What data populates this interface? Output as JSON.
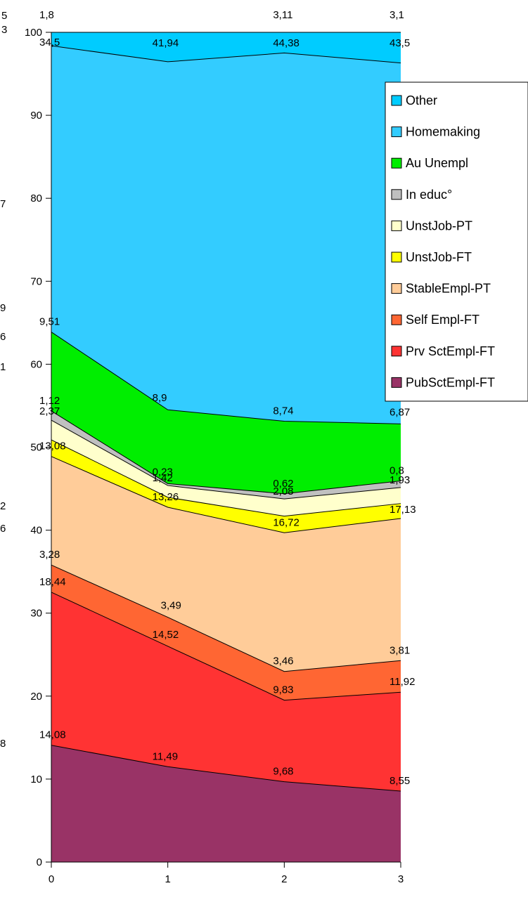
{
  "chart_data": {
    "type": "area",
    "stacked": true,
    "x": [
      0,
      1,
      2,
      3
    ],
    "xlim": [
      0,
      3
    ],
    "ylim": [
      0,
      100
    ],
    "xticks": [
      0,
      1,
      2,
      3
    ],
    "yticks": [
      0,
      10,
      20,
      30,
      40,
      50,
      60,
      70,
      80,
      90,
      100
    ],
    "title": "",
    "xlabel": "",
    "ylabel": "",
    "grid": false,
    "legend_position": "right",
    "series": [
      {
        "name": "PubSctEmpl-FT",
        "color": "#993366",
        "values": [
          14.08,
          11.49,
          9.68,
          8.55
        ],
        "labels": [
          "14,08",
          "11,49",
          "9,68",
          "8,55"
        ]
      },
      {
        "name": "Prv SctEmpl-FT",
        "color": "#ff3333",
        "values": [
          18.44,
          14.52,
          9.83,
          11.92
        ],
        "labels": [
          "18,44",
          "14,52",
          "9,83",
          "11,92"
        ]
      },
      {
        "name": "Self Empl-FT",
        "color": "#ff6633",
        "values": [
          3.28,
          3.49,
          3.46,
          3.81
        ],
        "labels": [
          "3,28",
          "3,49",
          "3,46",
          "3,81"
        ]
      },
      {
        "name": "StableEmpl-PT",
        "color": "#ffcc99",
        "values": [
          13.08,
          13.26,
          16.72,
          17.13
        ],
        "labels": [
          "13,08",
          "13,26",
          "16,72",
          "17,13"
        ]
      },
      {
        "name": "UnstJob-FT",
        "color": "#ffff00",
        "values": [
          2.0,
          1.2,
          2.0,
          1.8
        ],
        "labels": [
          "",
          "",
          "",
          ""
        ]
      },
      {
        "name": "UnstJob-PT",
        "color": "#ffffcc",
        "values": [
          2.37,
          1.42,
          2.08,
          1.93
        ],
        "labels": [
          "2,37",
          "1,42",
          "2,08",
          "1,93"
        ]
      },
      {
        "name": "In educ°",
        "color": "#c0c0c0",
        "values": [
          1.12,
          0.23,
          0.62,
          0.8
        ],
        "labels": [
          "1,12",
          "0,23",
          "0,62",
          "0,8"
        ]
      },
      {
        "name": "Au Unempl",
        "color": "#00ee00",
        "values": [
          9.51,
          8.9,
          8.74,
          6.87
        ],
        "labels": [
          "9,51",
          "8,9",
          "8,74",
          "6,87"
        ]
      },
      {
        "name": "Homemaking",
        "color": "#33ccff",
        "values": [
          34.5,
          41.94,
          44.38,
          43.5
        ],
        "labels": [
          "34,5",
          "41,94",
          "44,38",
          "43,5"
        ]
      },
      {
        "name": "Other",
        "color": "#00ccff",
        "values": [
          1.8,
          3.1,
          3.11,
          3.1
        ],
        "labels": [
          "1,8",
          "",
          "3,11",
          "3,1"
        ]
      }
    ],
    "legend_order": [
      "Other",
      "Homemaking",
      "Au Unempl",
      "In educ°",
      "UnstJob-PT",
      "UnstJob-FT",
      "StableEmpl-PT",
      "Self Empl-FT",
      "Prv SctEmpl-FT",
      "PubSctEmpl-FT"
    ],
    "edge_fragments": [
      "5",
      "3",
      "7",
      "9",
      "6",
      "1",
      "2",
      "6",
      "8"
    ]
  }
}
